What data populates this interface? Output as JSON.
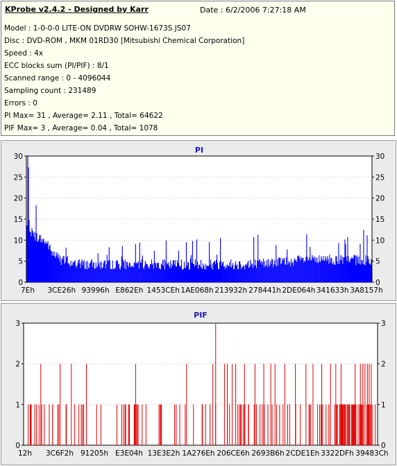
{
  "header": {
    "app_title": "KProbe v2.4.2 - Designed by Karr",
    "date": "Date : 6/2/2006 7:27:18 AM"
  },
  "info_lines": [
    "Model : 1-0-0-0 LITE-ON DVDRW SOHW-1673S JS07",
    "Disc : DVD-ROM , MKM 01RD30   [Mitsubishi Chemical Corporation]",
    "Speed : 4x",
    "ECC blocks sum (PI/PIF) : 8/1",
    "Scanned range : 0 - 4096044",
    "Sampling count : 231489",
    "Errors : 0",
    "PI Max= 31 , Average= 2.11 , Total= 64622",
    "PIF Max= 3 , Average= 0.04 , Total= 1078"
  ],
  "chart_data": [
    {
      "type": "bar",
      "title": "PI",
      "color": "#0000ff",
      "ylim": [
        0,
        30
      ],
      "yticks": [
        0,
        5,
        10,
        15,
        20,
        25,
        30
      ],
      "xtick_labels": [
        "7Eh",
        "3CE26h",
        "93996h",
        "E862Eh",
        "1453CEh",
        "1AE068h",
        "213932h",
        "278441h",
        "2DE064h",
        "341633h",
        "3A8157h"
      ],
      "grid": true,
      "profile": [
        {
          "x": 0.0,
          "base": 12,
          "max": 31
        },
        {
          "x": 0.02,
          "base": 10,
          "max": 20
        },
        {
          "x": 0.06,
          "base": 8,
          "max": 21
        },
        {
          "x": 0.07,
          "base": 6,
          "max": 16
        },
        {
          "x": 0.1,
          "base": 4,
          "max": 10
        },
        {
          "x": 0.15,
          "base": 3,
          "max": 8
        },
        {
          "x": 0.4,
          "base": 3,
          "max": 10
        },
        {
          "x": 0.5,
          "base": 3,
          "max": 13
        },
        {
          "x": 0.65,
          "base": 3,
          "max": 12
        },
        {
          "x": 0.8,
          "base": 4,
          "max": 12
        },
        {
          "x": 0.97,
          "base": 4,
          "max": 14
        },
        {
          "x": 1.0,
          "base": 4,
          "max": 10
        }
      ],
      "points": 496
    },
    {
      "type": "bar",
      "title": "PIF",
      "color": "#e00000",
      "ylim": [
        0,
        3
      ],
      "yticks": [
        0,
        1,
        2,
        3
      ],
      "xtick_labels": [
        "12h",
        "3C6F2h",
        "91205h",
        "E3E04h",
        "13E3E2h",
        "1A276Eh",
        "206CE6h",
        "2693B6h",
        "2CDE1Eh",
        "3322DFh",
        "39483Ch"
      ],
      "grid": true,
      "spikes_at_3": [
        0.543
      ],
      "spikes_at_2": [
        0.045,
        0.1,
        0.132,
        0.175,
        0.315,
        0.46,
        0.535,
        0.568,
        0.576,
        0.59,
        0.6,
        0.625,
        0.655,
        0.68,
        0.7,
        0.712,
        0.74,
        0.77,
        0.8,
        0.82,
        0.845,
        0.87,
        0.885,
        0.9,
        0.94,
        0.955,
        0.962,
        0.968,
        0.975,
        0.98,
        0.986
      ]
    }
  ]
}
